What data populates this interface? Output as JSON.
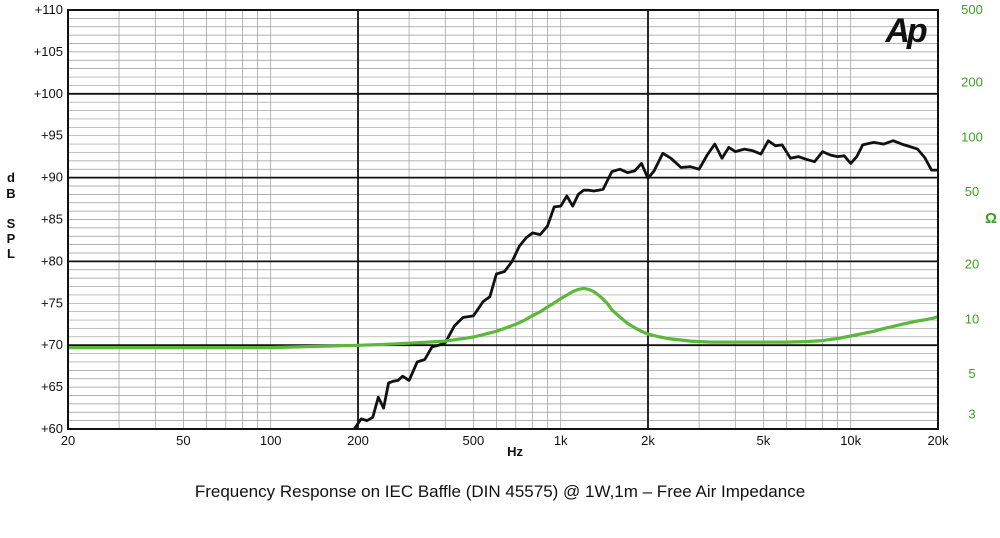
{
  "chart_data": {
    "type": "line",
    "title": "Frequency Response on IEC Baffle (DIN 45575)  @ 1W,1m – Free  Air Impedance",
    "logo": "Ap",
    "xlabel": "Hz",
    "ylabel_letters": [
      "d",
      "B",
      "S",
      "P",
      "L"
    ],
    "y2label": "Ω",
    "x_scale": "log",
    "y2_scale": "log",
    "xlim": [
      20,
      20000
    ],
    "ylim": [
      60,
      110
    ],
    "y2lim": [
      2.5,
      500
    ],
    "grid": true,
    "x_ticks": [
      {
        "value": 20,
        "label": "20"
      },
      {
        "value": 50,
        "label": "50"
      },
      {
        "value": 100,
        "label": "100"
      },
      {
        "value": 200,
        "label": "200"
      },
      {
        "value": 500,
        "label": "500"
      },
      {
        "value": 1000,
        "label": "1k"
      },
      {
        "value": 2000,
        "label": "2k"
      },
      {
        "value": 5000,
        "label": "5k"
      },
      {
        "value": 10000,
        "label": "10k"
      },
      {
        "value": 20000,
        "label": "20k"
      }
    ],
    "y_ticks": [
      {
        "value": 110,
        "label": "+110"
      },
      {
        "value": 105,
        "label": "+105"
      },
      {
        "value": 100,
        "label": "+100"
      },
      {
        "value": 95,
        "label": "+95"
      },
      {
        "value": 90,
        "label": "+90"
      },
      {
        "value": 85,
        "label": "+85"
      },
      {
        "value": 80,
        "label": "+80"
      },
      {
        "value": 75,
        "label": "+75"
      },
      {
        "value": 70,
        "label": "+70"
      },
      {
        "value": 65,
        "label": "+65"
      },
      {
        "value": 60,
        "label": "+60"
      }
    ],
    "y2_ticks": [
      {
        "value": 500,
        "label": "500"
      },
      {
        "value": 200,
        "label": "200"
      },
      {
        "value": 100,
        "label": "100"
      },
      {
        "value": 50,
        "label": "50"
      },
      {
        "value": 20,
        "label": "20"
      },
      {
        "value": 10,
        "label": "10"
      },
      {
        "value": 5,
        "label": "5"
      },
      {
        "value": 3,
        "label": "3"
      }
    ],
    "series": [
      {
        "axis": "left",
        "color": "#111111",
        "x": [
          190,
          205,
          215,
          225,
          235,
          245,
          255,
          265,
          275,
          285,
          300,
          320,
          340,
          360,
          380,
          400,
          430,
          460,
          500,
          540,
          570,
          600,
          640,
          680,
          720,
          760,
          800,
          850,
          900,
          950,
          1000,
          1050,
          1100,
          1150,
          1200,
          1250,
          1300,
          1350,
          1400,
          1500,
          1600,
          1700,
          1800,
          1900,
          2000,
          2100,
          2250,
          2400,
          2600,
          2800,
          3000,
          3200,
          3400,
          3600,
          3800,
          4000,
          4300,
          4600,
          4900,
          5200,
          5500,
          5800,
          6200,
          6600,
          7000,
          7500,
          8000,
          8500,
          9000,
          9500,
          10000,
          10500,
          11000,
          12000,
          13000,
          14000,
          15000,
          16000,
          17000,
          18000,
          19000,
          20000
        ],
        "y": [
          59.5,
          61.2,
          61.0,
          61.4,
          63.8,
          62.5,
          65.5,
          65.7,
          65.8,
          66.3,
          65.8,
          68.0,
          68.3,
          69.8,
          70.0,
          70.3,
          72.3,
          73.3,
          73.5,
          75.2,
          75.8,
          78.5,
          78.8,
          80.0,
          81.8,
          82.8,
          83.4,
          83.2,
          84.2,
          86.5,
          86.6,
          87.8,
          86.6,
          88.0,
          88.5,
          88.5,
          88.4,
          88.5,
          88.6,
          90.7,
          91.0,
          90.6,
          90.8,
          91.7,
          89.9,
          90.8,
          92.9,
          92.3,
          91.2,
          91.3,
          91.0,
          92.7,
          94.0,
          92.3,
          93.6,
          93.1,
          93.4,
          93.2,
          92.8,
          94.4,
          93.8,
          93.9,
          92.3,
          92.5,
          92.2,
          91.9,
          93.1,
          92.7,
          92.5,
          92.6,
          91.7,
          92.5,
          93.9,
          94.2,
          94.0,
          94.4,
          94.0,
          93.7,
          93.4,
          92.4,
          90.9,
          90.9
        ]
      },
      {
        "axis": "right",
        "color": "#5cb83a",
        "x": [
          20,
          100,
          140,
          200,
          250,
          300,
          350,
          400,
          450,
          500,
          550,
          600,
          650,
          700,
          750,
          800,
          850,
          900,
          950,
          1000,
          1050,
          1100,
          1150,
          1200,
          1250,
          1300,
          1350,
          1400,
          1450,
          1500,
          1600,
          1700,
          1800,
          1900,
          2000,
          2200,
          2400,
          2600,
          2800,
          3000,
          3300,
          3600,
          4000,
          5000,
          6000,
          7000,
          8000,
          9000,
          10000,
          11000,
          12000,
          13000,
          14000,
          15000,
          16000,
          17000,
          18000,
          19000,
          20000
        ],
        "y": [
          7.0,
          7.0,
          7.1,
          7.2,
          7.3,
          7.4,
          7.5,
          7.6,
          7.8,
          8.0,
          8.3,
          8.6,
          9.0,
          9.4,
          9.9,
          10.5,
          11.0,
          11.7,
          12.3,
          13.0,
          13.6,
          14.2,
          14.6,
          14.8,
          14.6,
          14.2,
          13.6,
          12.9,
          12.2,
          11.3,
          10.3,
          9.5,
          9.0,
          8.6,
          8.3,
          8.0,
          7.8,
          7.7,
          7.6,
          7.55,
          7.5,
          7.5,
          7.5,
          7.5,
          7.5,
          7.55,
          7.65,
          7.85,
          8.1,
          8.35,
          8.6,
          8.9,
          9.15,
          9.4,
          9.6,
          9.8,
          9.95,
          10.1,
          10.35
        ]
      }
    ]
  }
}
